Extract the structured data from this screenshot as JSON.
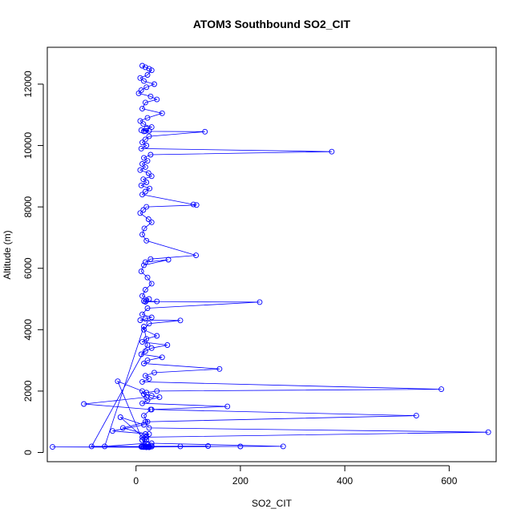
{
  "chart_data": {
    "type": "scatter",
    "title": "ATOM3 Southbound SO2_CIT",
    "xlabel": "SO2_CIT",
    "ylabel": "Altitude (m)",
    "xlim": [
      -170,
      690
    ],
    "ylim": [
      -300,
      13200
    ],
    "x_ticks": [
      0,
      200,
      400,
      600
    ],
    "y_ticks": [
      0,
      2000,
      4000,
      6000,
      8000,
      10000,
      12000
    ],
    "grid": false,
    "series_color": "#0000ff",
    "series": [
      {
        "x": [
          12,
          18,
          25,
          30,
          22,
          8,
          15,
          35,
          20,
          10,
          5,
          28,
          40,
          18,
          12,
          50,
          22,
          8,
          14,
          30,
          20,
          10,
          25,
          18,
          15,
          132,
          25,
          18,
          12,
          20,
          10,
          375,
          28,
          15,
          22,
          12,
          18,
          8,
          24,
          30,
          14,
          20,
          10,
          26,
          18,
          12,
          110,
          116,
          20,
          14,
          8,
          24,
          30,
          16,
          12,
          20,
          115,
          28,
          18,
          62,
          15,
          10,
          22,
          30,
          18,
          12,
          25,
          20,
          15,
          40,
          18,
          237,
          22,
          12,
          30,
          18,
          8,
          85,
          25,
          15,
          40,
          20,
          12,
          60,
          30,
          18,
          10,
          50,
          22,
          15,
          160,
          35,
          18,
          25,
          12,
          585,
          40,
          20,
          15,
          30,
          45,
          22,
          12,
          175,
          30,
          537,
          18,
          25,
          675,
          20,
          12,
          30,
          282,
          15,
          25,
          18,
          138,
          12,
          30,
          20,
          15,
          200,
          25,
          18,
          10,
          22,
          15,
          20,
          85,
          30,
          18,
          -35,
          12,
          20,
          -100,
          28,
          15,
          22,
          -25,
          18,
          12,
          20,
          -30,
          15,
          -45,
          25,
          18,
          12,
          20,
          -60,
          15,
          22,
          -85,
          18,
          12,
          25,
          -160,
          20,
          15,
          12
        ],
        "y": [
          12600,
          12550,
          12500,
          12450,
          12300,
          12200,
          12100,
          12000,
          11900,
          11800,
          11700,
          11600,
          11500,
          11400,
          11200,
          11050,
          10900,
          10800,
          10700,
          10600,
          10550,
          10500,
          10480,
          10470,
          10460,
          10450,
          10300,
          10200,
          10100,
          10000,
          9900,
          9800,
          9700,
          9600,
          9500,
          9400,
          9300,
          9200,
          9100,
          9000,
          8900,
          8800,
          8700,
          8600,
          8500,
          8400,
          8080,
          8060,
          8000,
          7900,
          7800,
          7600,
          7500,
          7300,
          7100,
          6900,
          6420,
          6300,
          6200,
          6280,
          6100,
          5900,
          5700,
          5500,
          5300,
          5100,
          5000,
          4950,
          4930,
          4920,
          4910,
          4900,
          4700,
          4500,
          4400,
          4350,
          4310,
          4300,
          4200,
          4000,
          3800,
          3700,
          3600,
          3500,
          3400,
          3300,
          3200,
          3100,
          3000,
          2900,
          2720,
          2600,
          2500,
          2400,
          2300,
          2060,
          2000,
          1950,
          1900,
          1850,
          1800,
          1700,
          1600,
          1500,
          1400,
          1200,
          1000,
          800,
          660,
          500,
          400,
          300,
          200,
          190,
          185,
          180,
          210,
          200,
          220,
          190,
          180,
          195,
          200,
          190,
          185,
          180,
          175,
          170,
          200,
          190,
          180,
          2320,
          2000,
          1800,
          1580,
          1400,
          1200,
          1000,
          800,
          600,
          500,
          400,
          1150,
          900,
          700,
          600,
          500,
          400,
          300,
          200,
          4100,
          3500,
          200,
          190,
          180,
          170,
          180,
          185,
          190,
          180
        ]
      }
    ]
  }
}
